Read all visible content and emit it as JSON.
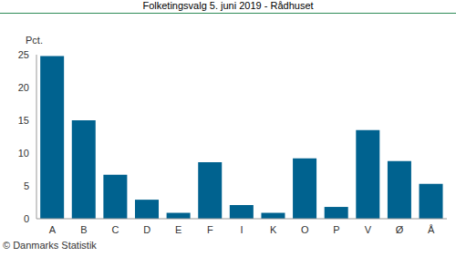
{
  "chart_data": {
    "type": "bar",
    "title": "Folketingsvalg 5. juni 2019 - Rådhuset",
    "y_label": "Pct.",
    "source": "© Danmarks Statistik",
    "categories": [
      "A",
      "B",
      "C",
      "D",
      "E",
      "F",
      "I",
      "K",
      "O",
      "P",
      "V",
      "Ø",
      "Å"
    ],
    "values": [
      24.8,
      15.0,
      6.7,
      2.9,
      0.9,
      8.6,
      2.1,
      0.9,
      9.2,
      1.8,
      13.5,
      8.8,
      5.3
    ],
    "color": "#00628f",
    "ylim": [
      0,
      25
    ],
    "yticks": [
      0,
      5,
      10,
      15,
      20,
      25
    ],
    "grid": false
  }
}
